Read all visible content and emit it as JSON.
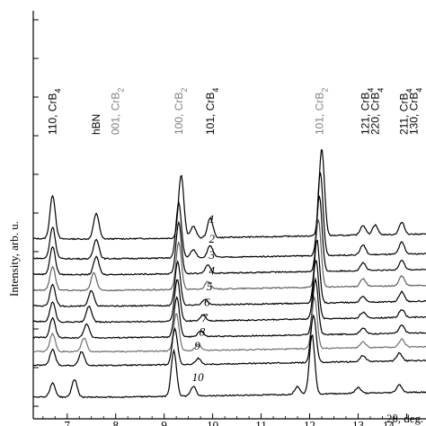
{
  "chart_data": {
    "type": "line",
    "title": "",
    "xlabel": "2θ, deg.",
    "ylabel": "Intensity, arb. u.",
    "xlim": [
      6.3,
      14.4
    ],
    "x_ticks": [
      "7",
      "8",
      "9",
      "10",
      "11",
      "12",
      "13",
      "14"
    ],
    "x_tick_values": [
      7,
      8,
      9,
      10,
      11,
      12,
      13,
      14
    ],
    "grid": false,
    "legend": "none",
    "peak_labels": [
      {
        "text": "110, CrB",
        "sub": "4",
        "x": 6.7,
        "color": "#000000"
      },
      {
        "text": "hBN",
        "sub": "",
        "x": 7.6,
        "color": "#000000"
      },
      {
        "text": "001, CrB",
        "sub": "2",
        "x": 8.0,
        "color": "#808080"
      },
      {
        "text": "100, CrB",
        "sub": "2",
        "x": 9.3,
        "color": "#808080"
      },
      {
        "text": "101, CrB",
        "sub": "4",
        "x": 9.95,
        "color": "#000000"
      },
      {
        "text": "101, CrB",
        "sub": "2",
        "x": 12.2,
        "color": "#808080"
      },
      {
        "text": "121, CrB",
        "sub": "4",
        "x": 13.15,
        "color": "#000000"
      },
      {
        "text": "220, CrB",
        "sub": "4",
        "x": 13.35,
        "color": "#000000"
      },
      {
        "text": "211, CrB",
        "sub": "4",
        "x": 13.95,
        "color": "#000000"
      },
      {
        "text": "130, CrB",
        "sub": "4",
        "x": 14.15,
        "color": "#000000"
      }
    ],
    "series": [
      {
        "name": "1",
        "color": "#000000",
        "offset": 9.0,
        "peaks": [
          [
            6.7,
            2.2
          ],
          [
            7.6,
            1.3
          ],
          [
            9.35,
            3.2
          ],
          [
            9.6,
            0.6
          ],
          [
            9.95,
            1.0
          ],
          [
            12.25,
            4.4
          ],
          [
            13.1,
            0.5
          ],
          [
            13.35,
            0.5
          ],
          [
            13.9,
            0.6
          ]
        ]
      },
      {
        "name": "2",
        "color": "#000000",
        "offset": 8.0,
        "peaks": [
          [
            6.7,
            1.6
          ],
          [
            7.6,
            1.0
          ],
          [
            9.3,
            2.8
          ],
          [
            9.6,
            0.4
          ],
          [
            9.95,
            0.6
          ],
          [
            12.22,
            4.2
          ],
          [
            13.1,
            0.5
          ],
          [
            13.9,
            0.6
          ]
        ]
      },
      {
        "name": "3",
        "color": "#000000",
        "offset": 7.2,
        "peaks": [
          [
            6.7,
            1.4
          ],
          [
            7.6,
            0.9
          ],
          [
            9.3,
            2.6
          ],
          [
            9.9,
            0.4
          ],
          [
            12.2,
            3.8
          ],
          [
            13.1,
            0.4
          ],
          [
            13.9,
            0.5
          ]
        ]
      },
      {
        "name": "4",
        "color": "#606060",
        "offset": 6.4,
        "peaks": [
          [
            6.7,
            1.2
          ],
          [
            7.55,
            0.9
          ],
          [
            9.3,
            2.4
          ],
          [
            9.9,
            0.4
          ],
          [
            12.18,
            3.4
          ],
          [
            13.1,
            0.4
          ],
          [
            13.9,
            0.5
          ]
        ]
      },
      {
        "name": "5",
        "color": "#000000",
        "offset": 5.6,
        "peaks": [
          [
            6.7,
            1.1
          ],
          [
            7.5,
            0.8
          ],
          [
            9.28,
            2.2
          ],
          [
            9.85,
            0.3
          ],
          [
            12.15,
            3.2
          ],
          [
            13.1,
            0.3
          ],
          [
            13.9,
            0.5
          ]
        ]
      },
      {
        "name": "6",
        "color": "#000000",
        "offset": 4.8,
        "peaks": [
          [
            6.7,
            1.0
          ],
          [
            7.45,
            0.8
          ],
          [
            9.27,
            2.1
          ],
          [
            9.8,
            0.3
          ],
          [
            12.13,
            3.0
          ],
          [
            13.1,
            0.3
          ],
          [
            13.9,
            0.4
          ]
        ]
      },
      {
        "name": "7",
        "color": "#000000",
        "offset": 4.0,
        "peaks": [
          [
            6.7,
            1.0
          ],
          [
            7.4,
            0.7
          ],
          [
            9.26,
            2.0
          ],
          [
            9.75,
            0.3
          ],
          [
            12.12,
            2.8
          ],
          [
            13.1,
            0.3
          ],
          [
            13.9,
            0.4
          ]
        ]
      },
      {
        "name": "8",
        "color": "#707070",
        "offset": 3.3,
        "peaks": [
          [
            6.7,
            0.9
          ],
          [
            7.35,
            0.7
          ],
          [
            9.25,
            1.9
          ],
          [
            9.7,
            0.3
          ],
          [
            12.1,
            2.6
          ],
          [
            13.1,
            0.3
          ],
          [
            13.9,
            0.4
          ]
        ]
      },
      {
        "name": "9",
        "color": "#000000",
        "offset": 2.6,
        "peaks": [
          [
            6.7,
            0.8
          ],
          [
            7.3,
            0.7
          ],
          [
            9.22,
            1.8
          ],
          [
            9.7,
            0.3
          ],
          [
            12.08,
            2.4
          ],
          [
            13.1,
            0.3
          ],
          [
            13.85,
            0.4
          ]
        ]
      },
      {
        "name": "10",
        "color": "#000000",
        "offset": 1.0,
        "peaks": [
          [
            6.7,
            0.7
          ],
          [
            7.15,
            0.9
          ],
          [
            9.2,
            2.3
          ],
          [
            9.6,
            0.5
          ],
          [
            11.75,
            0.4
          ],
          [
            12.05,
            3.0
          ],
          [
            13.0,
            0.3
          ],
          [
            13.85,
            0.4
          ]
        ]
      }
    ]
  }
}
